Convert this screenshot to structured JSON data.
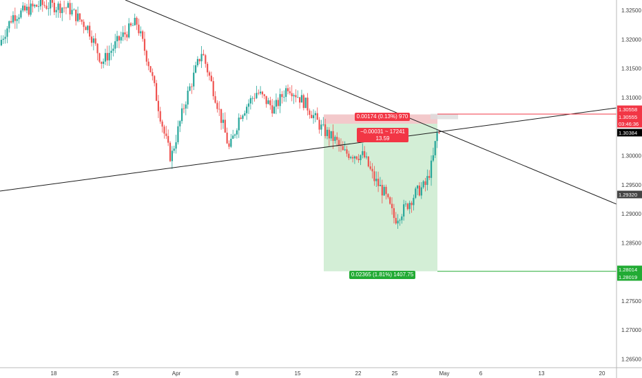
{
  "chart_data": {
    "type": "candlestick",
    "instrument_axis": "price",
    "x_tick_labels": [
      "18",
      "25",
      "Apr",
      "8",
      "15",
      "22",
      "25",
      "May",
      "6",
      "13",
      "20"
    ],
    "y_tick_labels": [
      "1.32500",
      "1.32000",
      "1.31500",
      "1.31000",
      "1.30000",
      "1.29500",
      "1.29000",
      "1.28500",
      "1.27500",
      "1.27000",
      "1.26500"
    ],
    "ylim": [
      1.2635,
      1.3268
    ],
    "grid": false,
    "price_badges": [
      {
        "id": "stop",
        "text": "1.30558",
        "color": "#f23645"
      },
      {
        "id": "entry",
        "text": "1.30555",
        "color": "#f23645"
      },
      {
        "id": "countdown",
        "text": "03:46:36",
        "color": "#f23645"
      },
      {
        "id": "last",
        "text": "1.30384",
        "color": "#000000"
      },
      {
        "id": "low",
        "text": "1.29320",
        "color": "#444444"
      },
      {
        "id": "target",
        "text": "1.28014",
        "color": "#22ab34"
      },
      {
        "id": "target2",
        "text": "1.28019",
        "color": "#22ab34"
      }
    ],
    "position_tool": {
      "stop_label": "0.00174 (0.13%) 970",
      "pnl_label_line1": "−0.00031 ~ 17241",
      "pnl_label_line2": "13.59",
      "target_label": "0.02365 (1.81%) 1407.75",
      "entry_price": 1.3055,
      "stop_price": 1.3071,
      "target_price": 1.2801
    },
    "trendlines": [
      {
        "name": "descending-resistance",
        "from": [
          1.3268
        ],
        "to": [
          1.2914
        ]
      },
      {
        "name": "ascending-support",
        "from": [
          1.2933
        ],
        "to": [
          1.3071
        ]
      }
    ],
    "colors": {
      "up": "#26a69a",
      "down": "#ef5350",
      "profit_zone": "#d3eed6",
      "loss_zone": "#f3c9cb"
    }
  }
}
